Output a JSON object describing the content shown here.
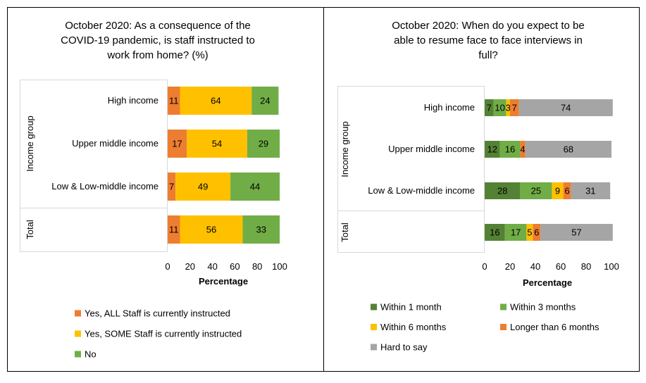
{
  "colors": {
    "all_staff": "#ED7D31",
    "some_staff": "#FFC000",
    "no": "#70AD47",
    "within_1_month": "#548235",
    "within_3_months": "#70AD47",
    "within_6_months": "#FFC000",
    "longer_than_6_months": "#ED7D31",
    "hard_to_say": "#A5A5A5"
  },
  "chart_data": [
    {
      "type": "bar",
      "orientation": "horizontal",
      "stacked": true,
      "title": "October 2020: As a consequence of the COVID-19 pandemic, is staff instructed to work from home? (%)",
      "title_lines": [
        "October 2020: As a consequence of the",
        "COVID-19 pandemic, is staff instructed to",
        "work from home? (%)"
      ],
      "xlabel": "Percentage",
      "group_labels": [
        "Income group",
        "Total"
      ],
      "categories": [
        "High income",
        "Upper middle income",
        "Low & Low-middle income",
        ""
      ],
      "xlim": [
        0,
        100
      ],
      "xticks": [
        "0",
        "20",
        "40",
        "60",
        "80",
        "100"
      ],
      "legend_position": "bottom",
      "series": [
        {
          "name": "Yes, ALL Staff is currently instructed",
          "values": [
            11,
            17,
            7,
            11
          ]
        },
        {
          "name": "Yes, SOME Staff is currently instructed",
          "values": [
            64,
            54,
            49,
            56
          ]
        },
        {
          "name": "No",
          "values": [
            24,
            29,
            44,
            33
          ]
        }
      ]
    },
    {
      "type": "bar",
      "orientation": "horizontal",
      "stacked": true,
      "title": "October 2020: When do you expect to be able to resume face to face interviews in full?",
      "title_lines": [
        "October 2020: When do you expect to be",
        "able to resume face to face interviews in",
        "full?"
      ],
      "xlabel": "Percentage",
      "group_labels": [
        "Income group",
        "Total"
      ],
      "categories": [
        "High income",
        "Upper middle income",
        "Low & Low-middle income",
        ""
      ],
      "xlim": [
        0,
        100
      ],
      "xticks": [
        "0",
        "20",
        "40",
        "60",
        "80",
        "100"
      ],
      "legend_position": "bottom",
      "series": [
        {
          "name": "Within 1 month",
          "values": [
            7,
            12,
            28,
            16
          ]
        },
        {
          "name": "Within 3 months",
          "values": [
            10,
            16,
            25,
            17
          ]
        },
        {
          "name": "Within 6 months",
          "values": [
            3,
            0,
            9,
            5
          ]
        },
        {
          "name": "Longer than 6 months",
          "values": [
            7,
            4,
            6,
            6
          ]
        },
        {
          "name": "Hard to say",
          "values": [
            74,
            68,
            31,
            57
          ]
        }
      ]
    }
  ]
}
